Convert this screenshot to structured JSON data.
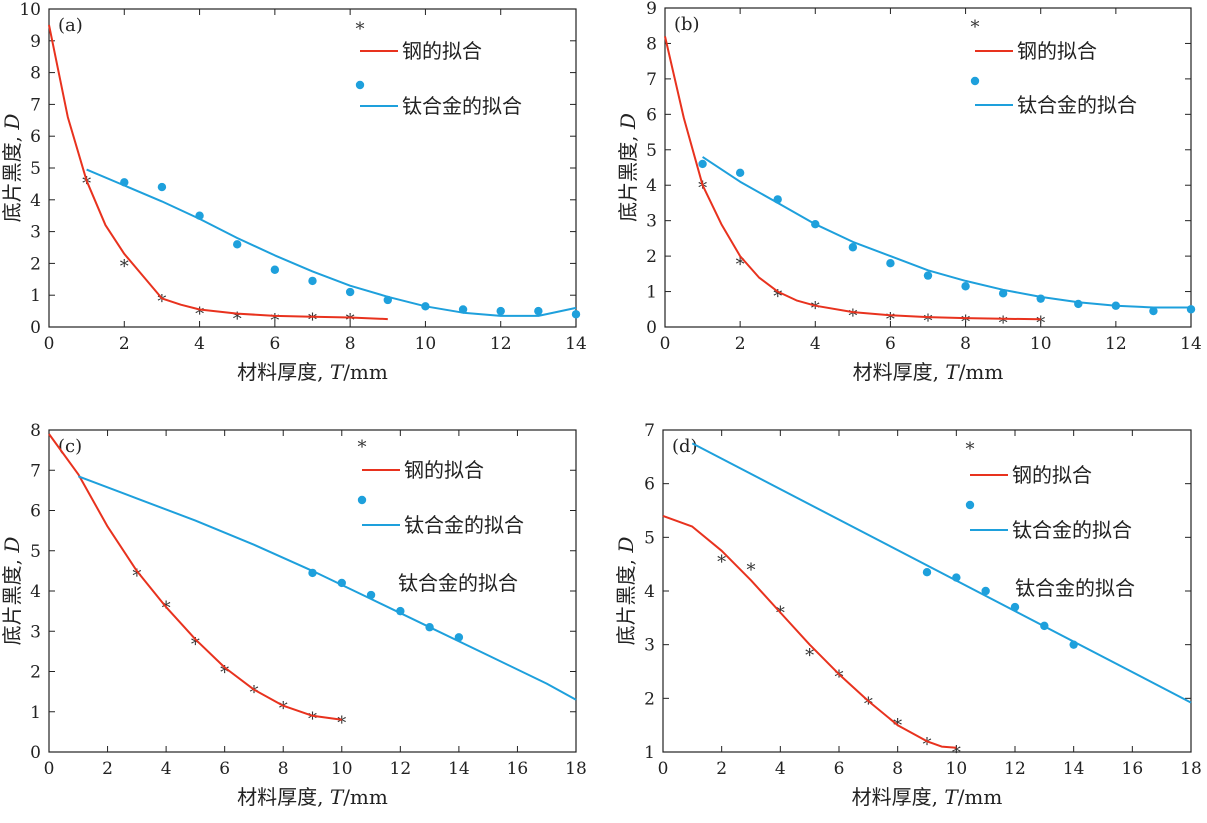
{
  "chart_data": [
    {
      "id": "a",
      "type": "scatter",
      "panel_label": "(a)",
      "xlabel_cn": "材料厚度, ",
      "xlabel_var": "T",
      "xlabel_unit": "/mm",
      "ylabel_cn": "底片黑度, ",
      "ylabel_var": "D",
      "xlim": [
        0,
        14
      ],
      "ylim": [
        0,
        10
      ],
      "xticks": [
        0,
        2,
        4,
        6,
        8,
        10,
        12,
        14
      ],
      "yticks": [
        0,
        1,
        2,
        3,
        4,
        5,
        6,
        7,
        8,
        9,
        10
      ],
      "grid": false,
      "legend_position": "top-right",
      "legend": [
        "*",
        "钢的拟合",
        "●",
        "钛合金的拟合"
      ],
      "extra_label": "",
      "series": [
        {
          "name": "*",
          "kind": "steel-points",
          "color": "#333333",
          "x": [
            1,
            2,
            3,
            4,
            5,
            6,
            7,
            8
          ],
          "y": [
            4.6,
            2.0,
            0.9,
            0.5,
            0.35,
            0.3,
            0.32,
            0.3
          ]
        },
        {
          "name": "钢的拟合",
          "kind": "steel-fit",
          "color": "#e8321e",
          "x": [
            0,
            0.5,
            1,
            1.5,
            2,
            2.5,
            3,
            3.5,
            4,
            5,
            6,
            7,
            8,
            9
          ],
          "y": [
            9.5,
            6.6,
            4.6,
            3.2,
            2.3,
            1.6,
            0.9,
            0.7,
            0.55,
            0.42,
            0.35,
            0.32,
            0.3,
            0.25
          ]
        },
        {
          "name": "●",
          "kind": "ti-points",
          "color": "#1ea0dc",
          "x": [
            2,
            3,
            4,
            5,
            6,
            7,
            8,
            9,
            10,
            11,
            12,
            13,
            14
          ],
          "y": [
            4.55,
            4.4,
            3.5,
            2.6,
            1.8,
            1.45,
            1.1,
            0.85,
            0.65,
            0.55,
            0.5,
            0.5,
            0.4
          ]
        },
        {
          "name": "钛合金的拟合",
          "kind": "ti-fit",
          "color": "#1ea0dc",
          "x": [
            1,
            2,
            3,
            4,
            5,
            6,
            7,
            8,
            9,
            10,
            11,
            12,
            13,
            14
          ],
          "y": [
            4.95,
            4.45,
            3.95,
            3.4,
            2.8,
            2.25,
            1.75,
            1.3,
            0.95,
            0.65,
            0.45,
            0.35,
            0.35,
            0.6
          ]
        }
      ]
    },
    {
      "id": "b",
      "type": "scatter",
      "panel_label": "(b)",
      "xlabel_cn": "材料厚度, ",
      "xlabel_var": "T",
      "xlabel_unit": "/mm",
      "ylabel_cn": "底片黑度, ",
      "ylabel_var": "D",
      "xlim": [
        0,
        14
      ],
      "ylim": [
        0,
        9
      ],
      "xticks": [
        0,
        2,
        4,
        6,
        8,
        10,
        12,
        14
      ],
      "yticks": [
        0,
        1,
        2,
        3,
        4,
        5,
        6,
        7,
        8,
        9
      ],
      "grid": false,
      "legend_position": "top-right",
      "legend": [
        "*",
        "钢的拟合",
        "●",
        "钛合金的拟合"
      ],
      "extra_label": "",
      "series": [
        {
          "name": "*",
          "kind": "steel-points",
          "color": "#333333",
          "x": [
            1,
            2,
            3,
            4,
            5,
            6,
            7,
            8,
            9,
            10
          ],
          "y": [
            4.0,
            1.85,
            0.95,
            0.6,
            0.4,
            0.3,
            0.25,
            0.22,
            0.2,
            0.2
          ]
        },
        {
          "name": "钢的拟合",
          "kind": "steel-fit",
          "color": "#e8321e",
          "x": [
            0,
            0.5,
            1,
            1.5,
            2,
            2.5,
            3,
            3.5,
            4,
            5,
            6,
            7,
            8,
            9,
            10
          ],
          "y": [
            8.2,
            5.9,
            4.0,
            2.9,
            2.0,
            1.4,
            1.0,
            0.75,
            0.6,
            0.42,
            0.33,
            0.28,
            0.25,
            0.23,
            0.22
          ]
        },
        {
          "name": "●",
          "kind": "ti-points",
          "color": "#1ea0dc",
          "x": [
            1,
            2,
            3,
            4,
            5,
            6,
            7,
            8,
            9,
            10,
            11,
            12,
            13,
            14
          ],
          "y": [
            4.6,
            4.35,
            3.6,
            2.9,
            2.25,
            1.8,
            1.45,
            1.15,
            0.95,
            0.8,
            0.65,
            0.6,
            0.45,
            0.5
          ]
        },
        {
          "name": "钛合金的拟合",
          "kind": "ti-fit",
          "color": "#1ea0dc",
          "x": [
            1,
            2,
            3,
            4,
            5,
            6,
            7,
            8,
            9,
            10,
            11,
            12,
            13,
            14
          ],
          "y": [
            4.8,
            4.1,
            3.5,
            2.9,
            2.4,
            2.0,
            1.6,
            1.3,
            1.05,
            0.85,
            0.7,
            0.6,
            0.55,
            0.55
          ]
        }
      ]
    },
    {
      "id": "c",
      "type": "scatter",
      "panel_label": "(c)",
      "xlabel_cn": "材料厚度, ",
      "xlabel_var": "T",
      "xlabel_unit": "/mm",
      "ylabel_cn": "底片黑度, ",
      "ylabel_var": "D",
      "xlim": [
        0,
        18
      ],
      "ylim": [
        0,
        8
      ],
      "xticks": [
        0,
        2,
        4,
        6,
        8,
        10,
        12,
        14,
        16,
        18
      ],
      "yticks": [
        0,
        1,
        2,
        3,
        4,
        5,
        6,
        7,
        8
      ],
      "grid": false,
      "legend_position": "top-right",
      "legend": [
        "*",
        "钢的拟合",
        "●",
        "钛合金的拟合"
      ],
      "extra_label": "钛合金的拟合",
      "series": [
        {
          "name": "*",
          "kind": "steel-points",
          "color": "#333333",
          "x": [
            3,
            4,
            5,
            6,
            7,
            8,
            9,
            10
          ],
          "y": [
            4.45,
            3.65,
            2.75,
            2.05,
            1.55,
            1.15,
            0.9,
            0.8
          ]
        },
        {
          "name": "钢的拟合",
          "kind": "steel-fit",
          "color": "#e8321e",
          "x": [
            0,
            1,
            2,
            3,
            4,
            5,
            6,
            7,
            8,
            9,
            10
          ],
          "y": [
            7.9,
            6.9,
            5.6,
            4.5,
            3.6,
            2.8,
            2.1,
            1.55,
            1.15,
            0.9,
            0.8
          ]
        },
        {
          "name": "●",
          "kind": "ti-points",
          "color": "#1ea0dc",
          "x": [
            9,
            10,
            11,
            12,
            13,
            14
          ],
          "y": [
            4.45,
            4.2,
            3.9,
            3.5,
            3.1,
            2.85
          ]
        },
        {
          "name": "钛合金的拟合",
          "kind": "ti-fit",
          "color": "#1ea0dc",
          "x": [
            1,
            3,
            5,
            7,
            9,
            11,
            13,
            15,
            17,
            18
          ],
          "y": [
            6.85,
            6.3,
            5.75,
            5.15,
            4.5,
            3.8,
            3.1,
            2.4,
            1.7,
            1.3
          ]
        }
      ]
    },
    {
      "id": "d",
      "type": "scatter",
      "panel_label": "(d)",
      "xlabel_cn": "材料厚度, ",
      "xlabel_var": "T",
      "xlabel_unit": "/mm",
      "ylabel_cn": "底片黑度, ",
      "ylabel_var": "D",
      "xlim": [
        0,
        18
      ],
      "ylim": [
        1,
        7
      ],
      "xticks": [
        0,
        2,
        4,
        6,
        8,
        10,
        12,
        14,
        16,
        18
      ],
      "yticks": [
        1,
        2,
        3,
        4,
        5,
        6,
        7
      ],
      "grid": false,
      "legend_position": "top-right",
      "legend": [
        "*",
        "钢的拟合",
        "●",
        "钛合金的拟合"
      ],
      "extra_label": "钛合金的拟合",
      "series": [
        {
          "name": "*",
          "kind": "steel-points",
          "color": "#333333",
          "x": [
            2,
            3,
            4,
            5,
            6,
            7,
            8,
            9,
            10
          ],
          "y": [
            4.6,
            4.45,
            3.65,
            2.85,
            2.45,
            1.95,
            1.55,
            1.2,
            1.05
          ]
        },
        {
          "name": "钢的拟合",
          "kind": "steel-fit",
          "color": "#e8321e",
          "x": [
            0,
            1,
            2,
            3,
            4,
            5,
            6,
            7,
            8,
            9,
            9.5,
            10
          ],
          "y": [
            5.4,
            5.2,
            4.75,
            4.2,
            3.6,
            3.0,
            2.45,
            1.95,
            1.5,
            1.2,
            1.1,
            1.08
          ]
        },
        {
          "name": "●",
          "kind": "ti-points",
          "color": "#1ea0dc",
          "x": [
            9,
            10,
            11,
            12,
            13,
            14
          ],
          "y": [
            4.35,
            4.25,
            4.0,
            3.7,
            3.35,
            3.0
          ]
        },
        {
          "name": "钛合金的拟合",
          "kind": "ti-fit",
          "color": "#1ea0dc",
          "x": [
            1,
            18
          ],
          "y": [
            6.75,
            1.92
          ]
        }
      ]
    }
  ]
}
